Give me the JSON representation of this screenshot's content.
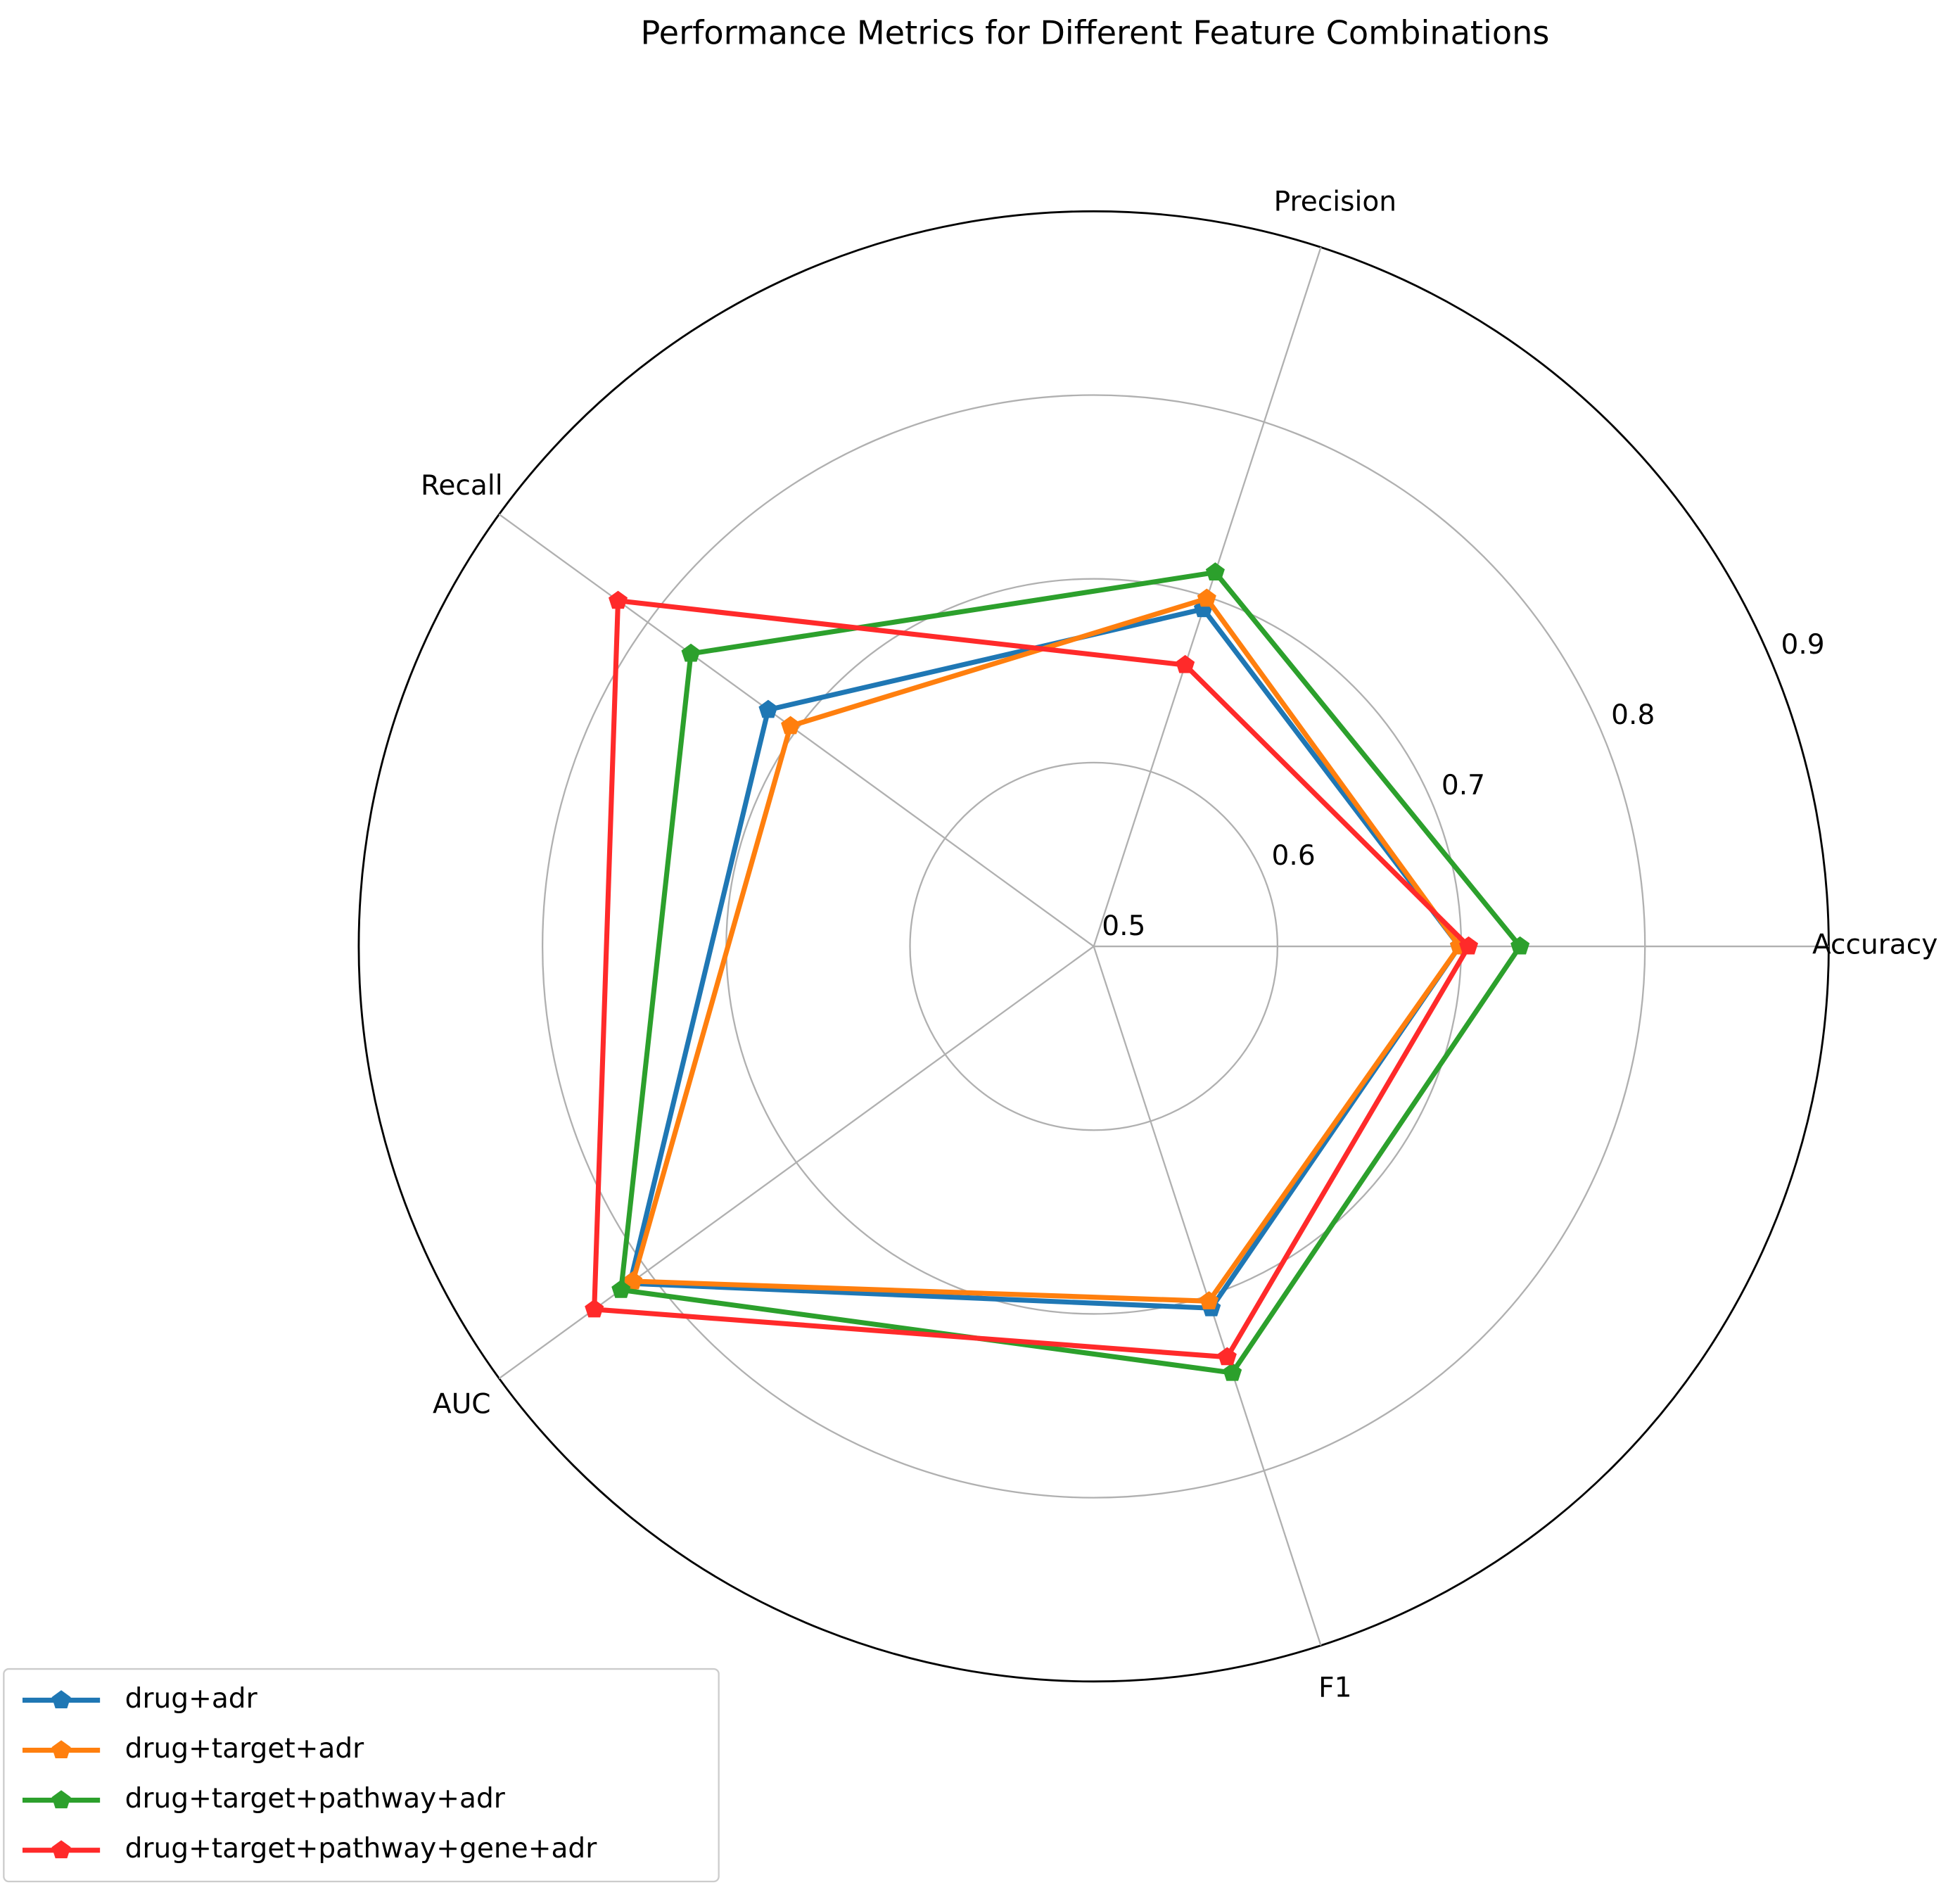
{
  "chart_data": {
    "type": "radar",
    "title": "Performance Metrics for Different Feature Combinations",
    "categories": [
      "Accuracy",
      "Precision",
      "Recall",
      "AUC",
      "F1"
    ],
    "rlim": [
      0.5,
      0.9
    ],
    "rticks": [
      0.5,
      0.6,
      0.7,
      0.8,
      0.9
    ],
    "grid": true,
    "legend": "lower left",
    "series": [
      {
        "name": "drug+adr",
        "color": "#1f77b4",
        "values": [
          0.699,
          0.693,
          0.719,
          0.812,
          0.707
        ]
      },
      {
        "name": "drug+target+adr",
        "color": "#ff7f0e",
        "values": [
          0.699,
          0.699,
          0.704,
          0.81,
          0.703
        ]
      },
      {
        "name": "drug+target+pathway+adr",
        "color": "#2ca02c",
        "values": [
          0.732,
          0.714,
          0.771,
          0.818,
          0.744
        ]
      },
      {
        "name": "drug+target+pathway+gene+adr",
        "color": "#ff2a2a",
        "values": [
          0.704,
          0.661,
          0.82,
          0.836,
          0.735
        ]
      }
    ]
  }
}
